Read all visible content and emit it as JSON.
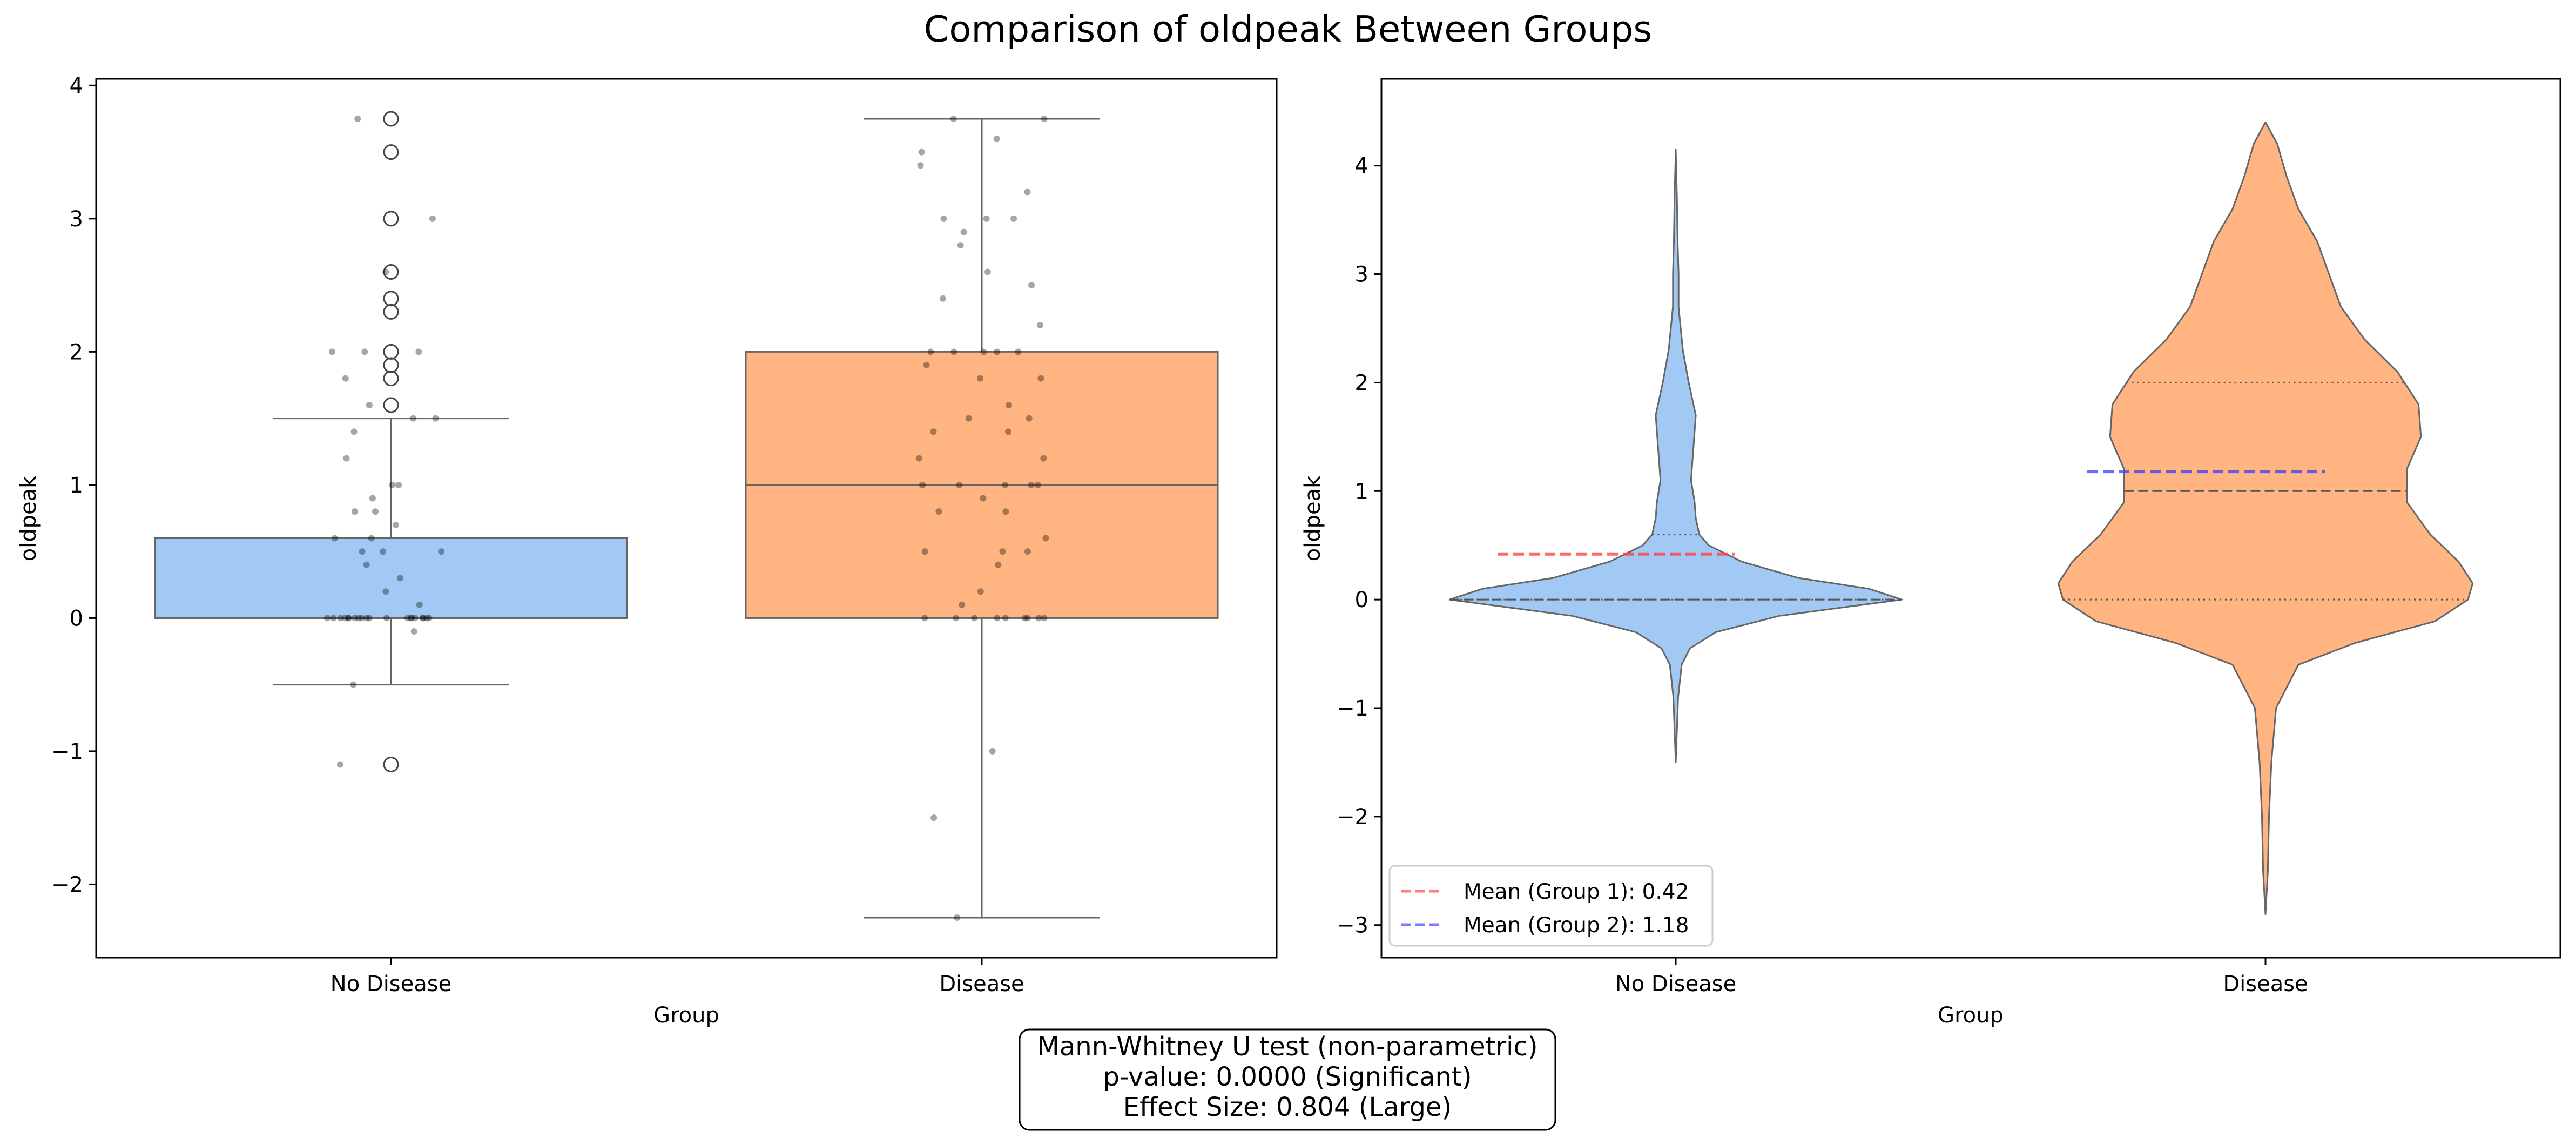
{
  "title": "Comparison of oldpeak Between Groups",
  "chart_data": [
    {
      "type": "box",
      "xlabel": "Group",
      "ylabel": "oldpeak",
      "ylim": [
        -2.55,
        4.05
      ],
      "yticks": [
        -2,
        -1,
        0,
        1,
        2,
        3,
        4
      ],
      "ytick_labels": [
        "−2",
        "−1",
        "0",
        "1",
        "2",
        "3",
        "4"
      ],
      "categories": [
        "No Disease",
        "Disease"
      ],
      "colors": [
        "#a1c9f4",
        "#ffb482"
      ],
      "boxes": [
        {
          "name": "No Disease",
          "q1": 0.0,
          "median": 0.0,
          "q3": 0.6,
          "whisker_low": -0.5,
          "whisker_high": 1.5,
          "outliers": [
            3.75,
            3.5,
            3.0,
            2.6,
            2.4,
            2.3,
            2.0,
            1.9,
            1.8,
            1.6,
            -1.1
          ]
        },
        {
          "name": "Disease",
          "q1": 0.0,
          "median": 1.0,
          "q3": 2.0,
          "whisker_low": -2.25,
          "whisker_high": 3.75,
          "outliers": []
        }
      ],
      "strip_points": [
        {
          "category": "No Disease",
          "values": [
            3.75,
            3.0,
            2.6,
            2.0,
            2.0,
            1.6,
            1.5,
            1.4,
            1.2,
            1.0,
            1.0,
            0.8,
            0.8,
            0.6,
            0.5,
            0.5,
            0.4,
            0.3,
            0.2,
            0.1,
            0,
            0,
            0,
            0,
            0,
            0,
            0,
            0,
            0,
            0,
            0,
            0,
            0,
            0,
            0,
            0,
            0,
            0,
            0,
            0,
            -0.1,
            -0.5,
            -1.1,
            0.5,
            0.6,
            1.8,
            1.5,
            2.0,
            0.9,
            0.7
          ]
        },
        {
          "category": "Disease",
          "values": [
            3.75,
            3.75,
            3.6,
            3.5,
            3.4,
            3.2,
            3.0,
            3.0,
            3.0,
            2.9,
            2.8,
            2.6,
            2.5,
            2.4,
            2.2,
            2.0,
            2.0,
            2.0,
            2.0,
            2.0,
            1.9,
            1.8,
            1.8,
            1.6,
            1.5,
            1.5,
            1.4,
            1.4,
            1.2,
            1.2,
            1.0,
            1.0,
            1.0,
            1.0,
            1.0,
            0.9,
            0.8,
            0.8,
            0.6,
            0.5,
            0.5,
            0.5,
            0.4,
            0.2,
            0.1,
            0,
            0,
            0,
            0,
            0,
            0,
            0,
            0,
            0,
            -1.0,
            -1.5,
            -2.25
          ]
        }
      ]
    },
    {
      "type": "violin",
      "xlabel": "Group",
      "ylabel": "oldpeak",
      "ylim": [
        -3.3,
        4.8
      ],
      "yticks": [
        -3,
        -2,
        -1,
        0,
        1,
        2,
        3,
        4
      ],
      "ytick_labels": [
        "−3",
        "−2",
        "−1",
        "0",
        "1",
        "2",
        "3",
        "4"
      ],
      "categories": [
        "No Disease",
        "Disease"
      ],
      "colors": [
        "#a1c9f4",
        "#ffb482"
      ],
      "violins": [
        {
          "name": "No Disease",
          "q1": 0.0,
          "median": 0.0,
          "q3": 0.6,
          "min": -1.5,
          "max": 4.15,
          "density": [
            [
              -1.5,
              0.0
            ],
            [
              -1.2,
              0.005
            ],
            [
              -0.9,
              0.01
            ],
            [
              -0.6,
              0.025
            ],
            [
              -0.45,
              0.06
            ],
            [
              -0.3,
              0.17
            ],
            [
              -0.15,
              0.44
            ],
            [
              0.0,
              0.96
            ],
            [
              0.1,
              0.82
            ],
            [
              0.2,
              0.52
            ],
            [
              0.35,
              0.28
            ],
            [
              0.5,
              0.14
            ],
            [
              0.6,
              0.1
            ],
            [
              0.75,
              0.085
            ],
            [
              0.9,
              0.08
            ],
            [
              1.1,
              0.065
            ],
            [
              1.4,
              0.075
            ],
            [
              1.7,
              0.085
            ],
            [
              2.0,
              0.055
            ],
            [
              2.3,
              0.03
            ],
            [
              2.7,
              0.012
            ],
            [
              3.0,
              0.012
            ],
            [
              3.3,
              0.008
            ],
            [
              3.7,
              0.005
            ],
            [
              4.15,
              0.0
            ]
          ]
        },
        {
          "name": "Disease",
          "q1": 0.0,
          "median": 1.0,
          "q3": 2.0,
          "min": -2.9,
          "max": 4.4,
          "density": [
            [
              -2.9,
              0.0
            ],
            [
              -2.5,
              0.01
            ],
            [
              -2.0,
              0.015
            ],
            [
              -1.5,
              0.025
            ],
            [
              -1.0,
              0.045
            ],
            [
              -0.6,
              0.14
            ],
            [
              -0.4,
              0.38
            ],
            [
              -0.2,
              0.72
            ],
            [
              0.0,
              0.86
            ],
            [
              0.15,
              0.88
            ],
            [
              0.35,
              0.82
            ],
            [
              0.6,
              0.7
            ],
            [
              0.9,
              0.6
            ],
            [
              1.2,
              0.6
            ],
            [
              1.5,
              0.66
            ],
            [
              1.8,
              0.65
            ],
            [
              2.1,
              0.56
            ],
            [
              2.4,
              0.42
            ],
            [
              2.7,
              0.32
            ],
            [
              3.0,
              0.27
            ],
            [
              3.3,
              0.22
            ],
            [
              3.6,
              0.14
            ],
            [
              3.9,
              0.09
            ],
            [
              4.2,
              0.05
            ],
            [
              4.4,
              0.0
            ]
          ]
        }
      ],
      "means": [
        {
          "group": "No Disease",
          "value": 0.42,
          "color": "#ff4444",
          "label": "Mean (Group 1): 0.42"
        },
        {
          "group": "Disease",
          "value": 1.18,
          "color": "#4444ff",
          "label": "Mean (Group 2): 1.18"
        }
      ],
      "legend_position": "lower left"
    }
  ],
  "stats_box": {
    "line1": "Mann-Whitney U test (non-parametric)",
    "line2": "p-value: 0.0000 (Significant)",
    "line3": "Effect Size: 0.804 (Large)"
  }
}
